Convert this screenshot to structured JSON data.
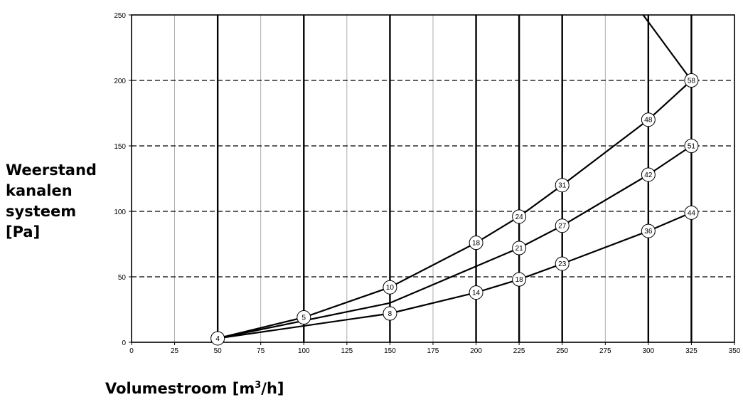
{
  "axis_title_y": [
    "Weerstand",
    "kanalen",
    "systeem",
    "[Pa]"
  ],
  "axis_title_x": {
    "text": "Volumestroom [m",
    "sup": "3",
    "suffix": "/h]"
  },
  "chart_data": {
    "type": "line",
    "title": "",
    "xlabel": "Volumestroom [m3/h]",
    "ylabel": "Weerstand kanalen systeem [Pa]",
    "xlim": [
      0,
      350
    ],
    "ylim": [
      0,
      250
    ],
    "xticks": [
      0,
      25,
      50,
      75,
      100,
      125,
      150,
      175,
      200,
      225,
      250,
      275,
      300,
      325,
      350
    ],
    "yticks": [
      0,
      50,
      100,
      150,
      200,
      250
    ],
    "vertical_lines": [
      50,
      100,
      150,
      200,
      225,
      250,
      300,
      325
    ],
    "horizontal_dashed": [
      50,
      100,
      150,
      200
    ],
    "series": [
      {
        "x": [
          50,
          100,
          150,
          200,
          225,
          250,
          300,
          325
        ],
        "y": [
          3,
          19,
          42,
          76,
          96,
          120,
          170,
          200
        ],
        "markers": [
          {
            "x": 50,
            "y": 3,
            "label": "4"
          },
          {
            "x": 100,
            "y": 19,
            "label": "5"
          },
          {
            "x": 150,
            "y": 42,
            "label": "10"
          },
          {
            "x": 200,
            "y": 76,
            "label": "18"
          },
          {
            "x": 225,
            "y": 96,
            "label": "24"
          },
          {
            "x": 250,
            "y": 120,
            "label": "31"
          },
          {
            "x": 300,
            "y": 170,
            "label": "48"
          },
          {
            "x": 325,
            "y": 200,
            "label": "58"
          }
        ]
      },
      {
        "x": [
          50,
          150,
          225,
          250,
          300,
          325
        ],
        "y": [
          3,
          30,
          72,
          89,
          128,
          150
        ],
        "markers": [
          {
            "x": 225,
            "y": 72,
            "label": "21"
          },
          {
            "x": 250,
            "y": 89,
            "label": "27"
          },
          {
            "x": 300,
            "y": 128,
            "label": "42"
          },
          {
            "x": 325,
            "y": 150,
            "label": "51"
          }
        ]
      },
      {
        "x": [
          50,
          150,
          200,
          225,
          250,
          300,
          325
        ],
        "y": [
          3,
          22,
          38,
          48,
          60,
          85,
          99
        ],
        "markers": [
          {
            "x": 150,
            "y": 22,
            "label": "8"
          },
          {
            "x": 200,
            "y": 38,
            "label": "14"
          },
          {
            "x": 225,
            "y": 48,
            "label": "18"
          },
          {
            "x": 250,
            "y": 60,
            "label": "23"
          },
          {
            "x": 300,
            "y": 85,
            "label": "36"
          },
          {
            "x": 325,
            "y": 99,
            "label": "44"
          }
        ]
      },
      {
        "x": [
          297,
          325
        ],
        "y": [
          250,
          200
        ],
        "markers": []
      }
    ]
  }
}
